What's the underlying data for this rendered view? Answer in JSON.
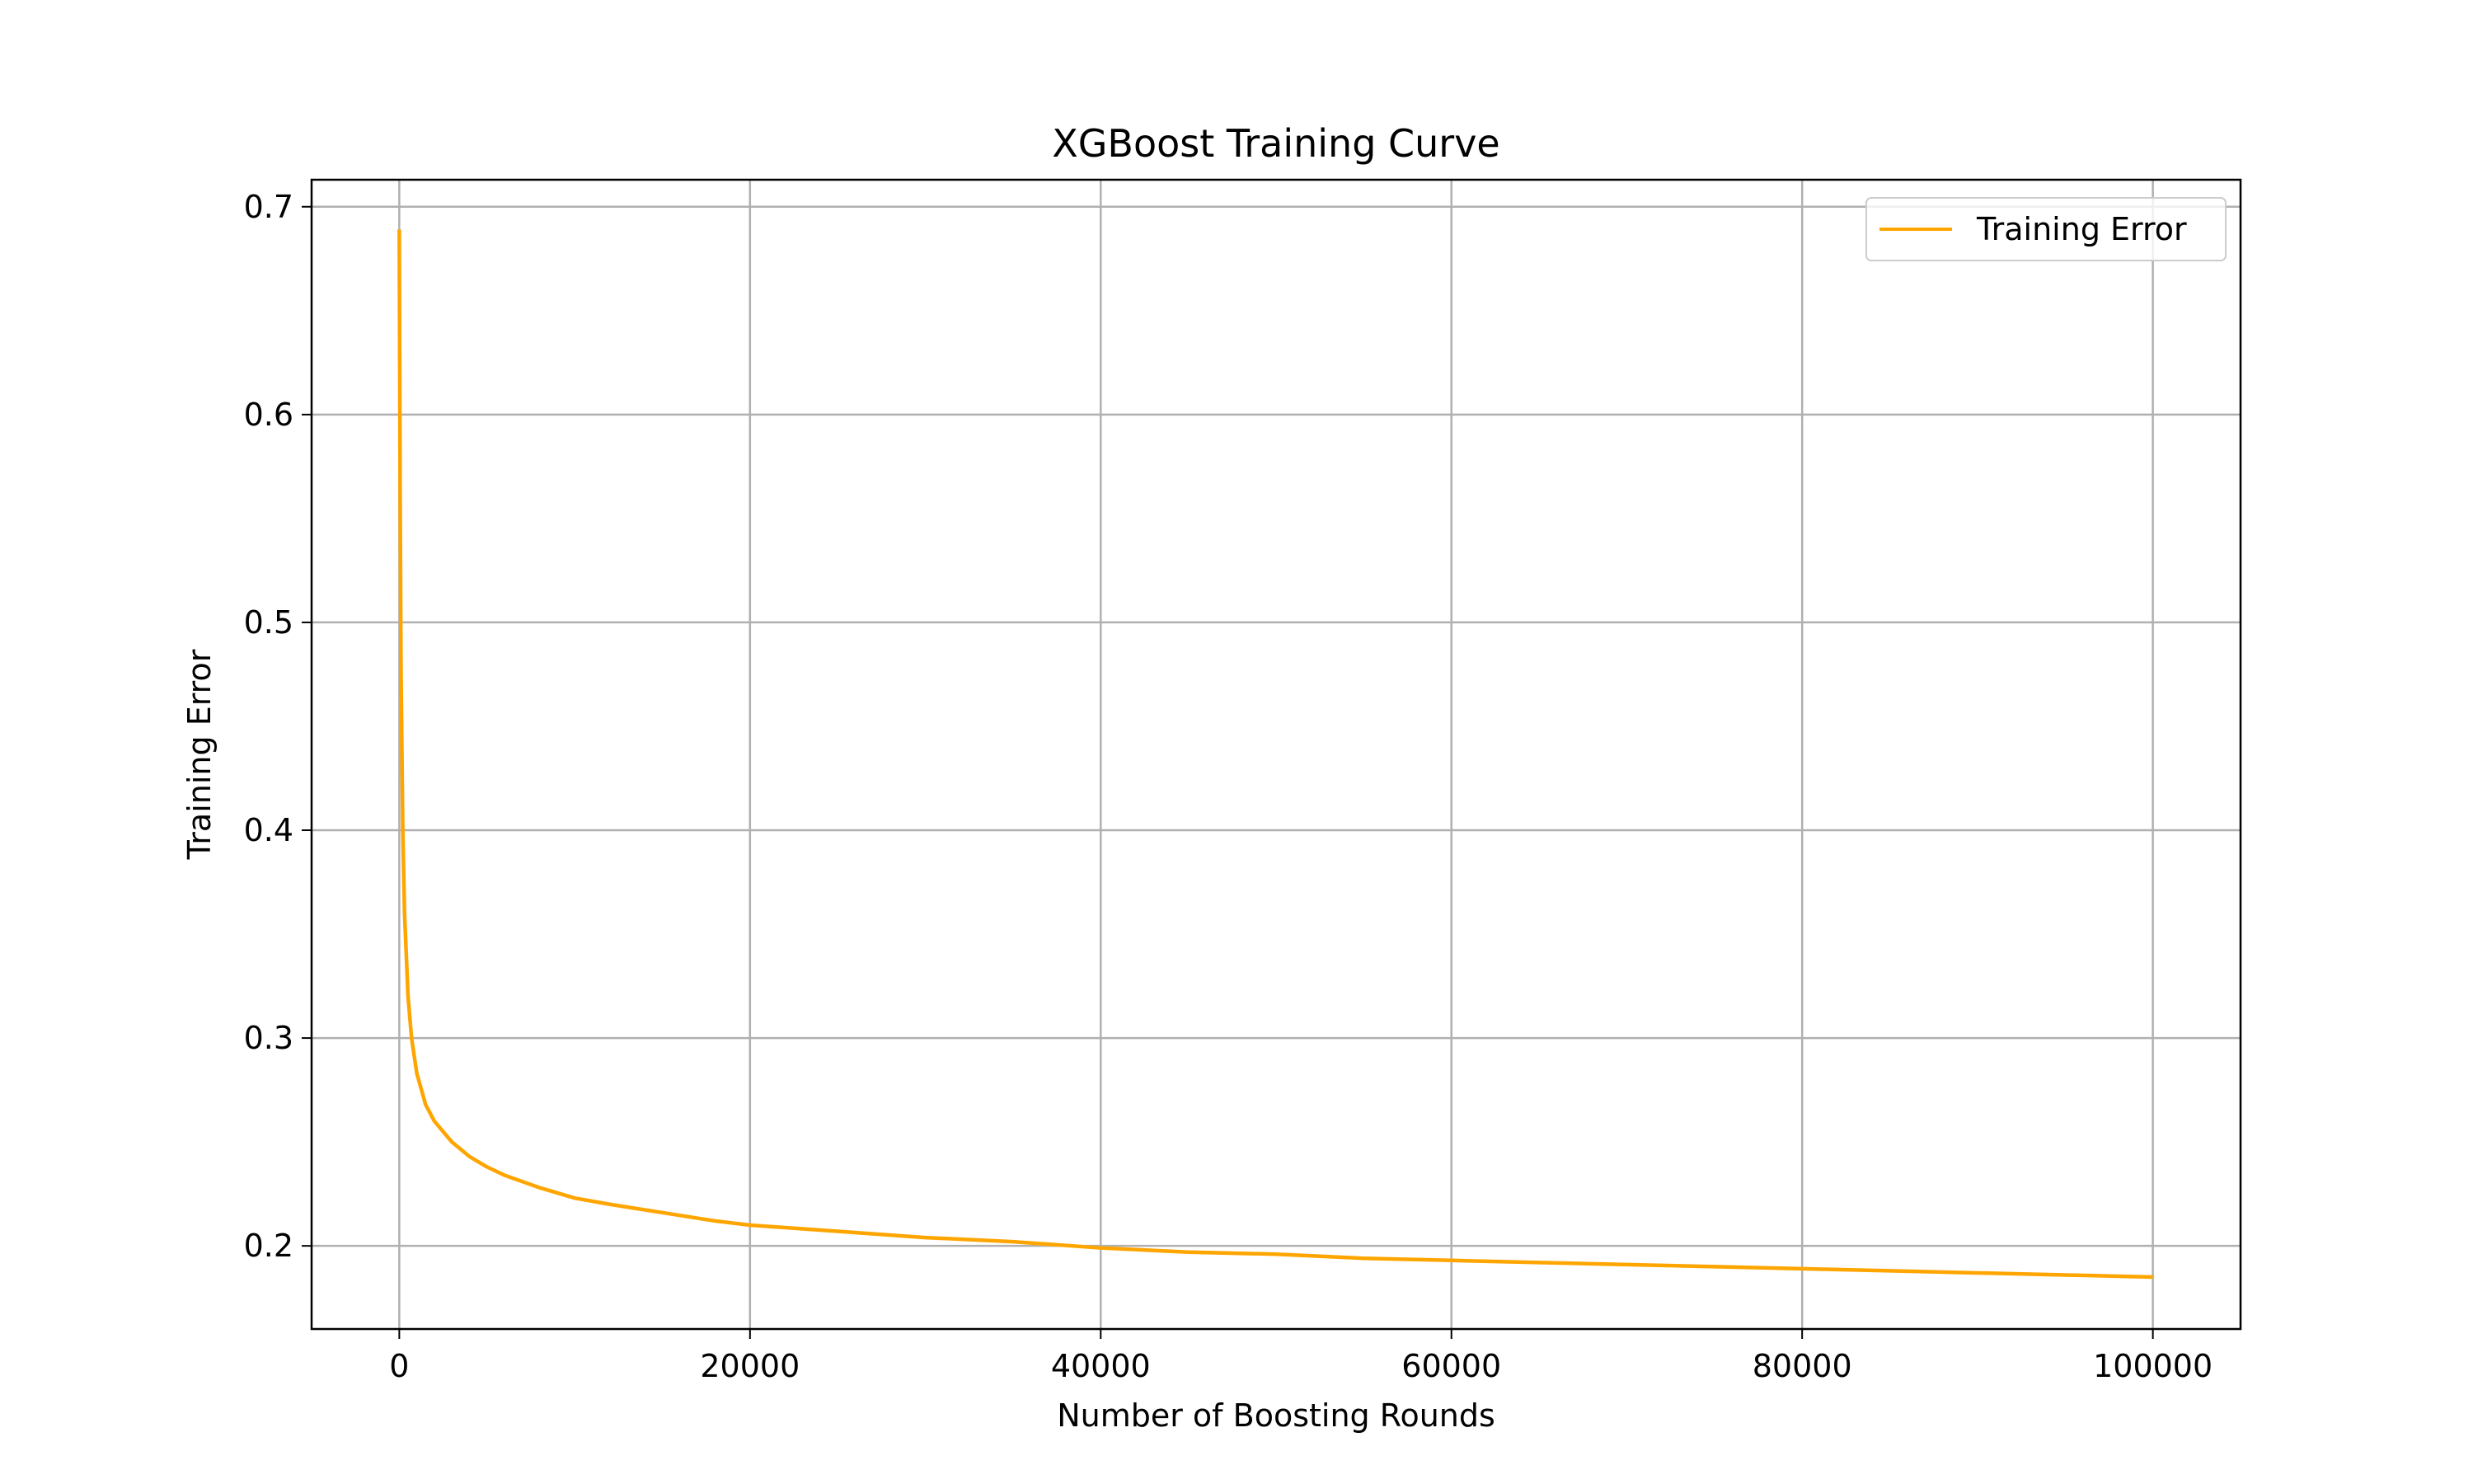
{
  "chart_data": {
    "type": "line",
    "title": "XGBoost Training Curve",
    "xlabel": "Number of Boosting Rounds",
    "ylabel": "Training Error",
    "xlim": [
      -5000,
      105000
    ],
    "ylim": [
      0.16,
      0.713
    ],
    "x_ticks": [
      0,
      20000,
      40000,
      60000,
      80000,
      100000
    ],
    "x_tick_labels": [
      "0",
      "20000",
      "40000",
      "60000",
      "80000",
      "100000"
    ],
    "y_ticks": [
      0.2,
      0.3,
      0.4,
      0.5,
      0.6,
      0.7
    ],
    "y_tick_labels": [
      "0.2",
      "0.3",
      "0.4",
      "0.5",
      "0.6",
      "0.7"
    ],
    "grid": true,
    "legend_position": "top-right",
    "series": [
      {
        "name": "Training Error",
        "color": "#ffa500",
        "x": [
          0,
          50,
          100,
          200,
          300,
          500,
          700,
          1000,
          1500,
          2000,
          3000,
          4000,
          5000,
          6000,
          8000,
          10000,
          12000,
          15000,
          18000,
          20000,
          25000,
          30000,
          35000,
          40000,
          45000,
          50000,
          55000,
          60000,
          65000,
          70000,
          75000,
          80000,
          85000,
          90000,
          95000,
          100000
        ],
        "y": [
          0.689,
          0.56,
          0.475,
          0.4,
          0.36,
          0.32,
          0.3,
          0.283,
          0.268,
          0.26,
          0.25,
          0.243,
          0.238,
          0.234,
          0.228,
          0.223,
          0.22,
          0.216,
          0.212,
          0.21,
          0.207,
          0.204,
          0.202,
          0.199,
          0.197,
          0.196,
          0.194,
          0.193,
          0.192,
          0.191,
          0.19,
          0.189,
          0.188,
          0.187,
          0.186,
          0.185
        ]
      }
    ]
  }
}
